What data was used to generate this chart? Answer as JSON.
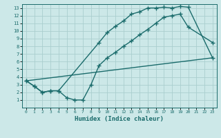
{
  "xlabel": "Humidex (Indice chaleur)",
  "xlim": [
    -0.5,
    23.5
  ],
  "ylim": [
    0,
    13.5
  ],
  "xticks": [
    0,
    1,
    2,
    3,
    4,
    5,
    6,
    7,
    8,
    9,
    10,
    11,
    12,
    13,
    14,
    15,
    16,
    17,
    18,
    19,
    20,
    21,
    22,
    23
  ],
  "yticks": [
    1,
    2,
    3,
    4,
    5,
    6,
    7,
    8,
    9,
    10,
    11,
    12,
    13
  ],
  "bg_color": "#cce8e8",
  "grid_color": "#aacece",
  "line_color": "#1a6b6b",
  "line_width": 1.0,
  "marker": "+",
  "marker_size": 4,
  "marker_lw": 1.0,
  "curve1_x": [
    0,
    1,
    2,
    3,
    4,
    9,
    10,
    11,
    12,
    13,
    14,
    15,
    16,
    17,
    18,
    19,
    20,
    23
  ],
  "curve1_y": [
    3.5,
    2.8,
    2.0,
    2.2,
    2.2,
    8.5,
    9.8,
    10.6,
    11.3,
    12.2,
    12.5,
    13.0,
    13.0,
    13.1,
    13.0,
    13.2,
    13.1,
    6.5
  ],
  "curve2_x": [
    0,
    1,
    2,
    3,
    4,
    5,
    6,
    7,
    8,
    9,
    10,
    11,
    12,
    13,
    14,
    15,
    16,
    17,
    18,
    19,
    20,
    23
  ],
  "curve2_y": [
    3.5,
    2.8,
    2.0,
    2.2,
    2.2,
    1.3,
    1.0,
    1.0,
    3.0,
    5.5,
    6.5,
    7.2,
    8.0,
    8.7,
    9.5,
    10.2,
    11.0,
    11.8,
    12.0,
    12.2,
    10.5,
    8.5
  ],
  "curve3_x": [
    0,
    23
  ],
  "curve3_y": [
    3.5,
    6.5
  ]
}
